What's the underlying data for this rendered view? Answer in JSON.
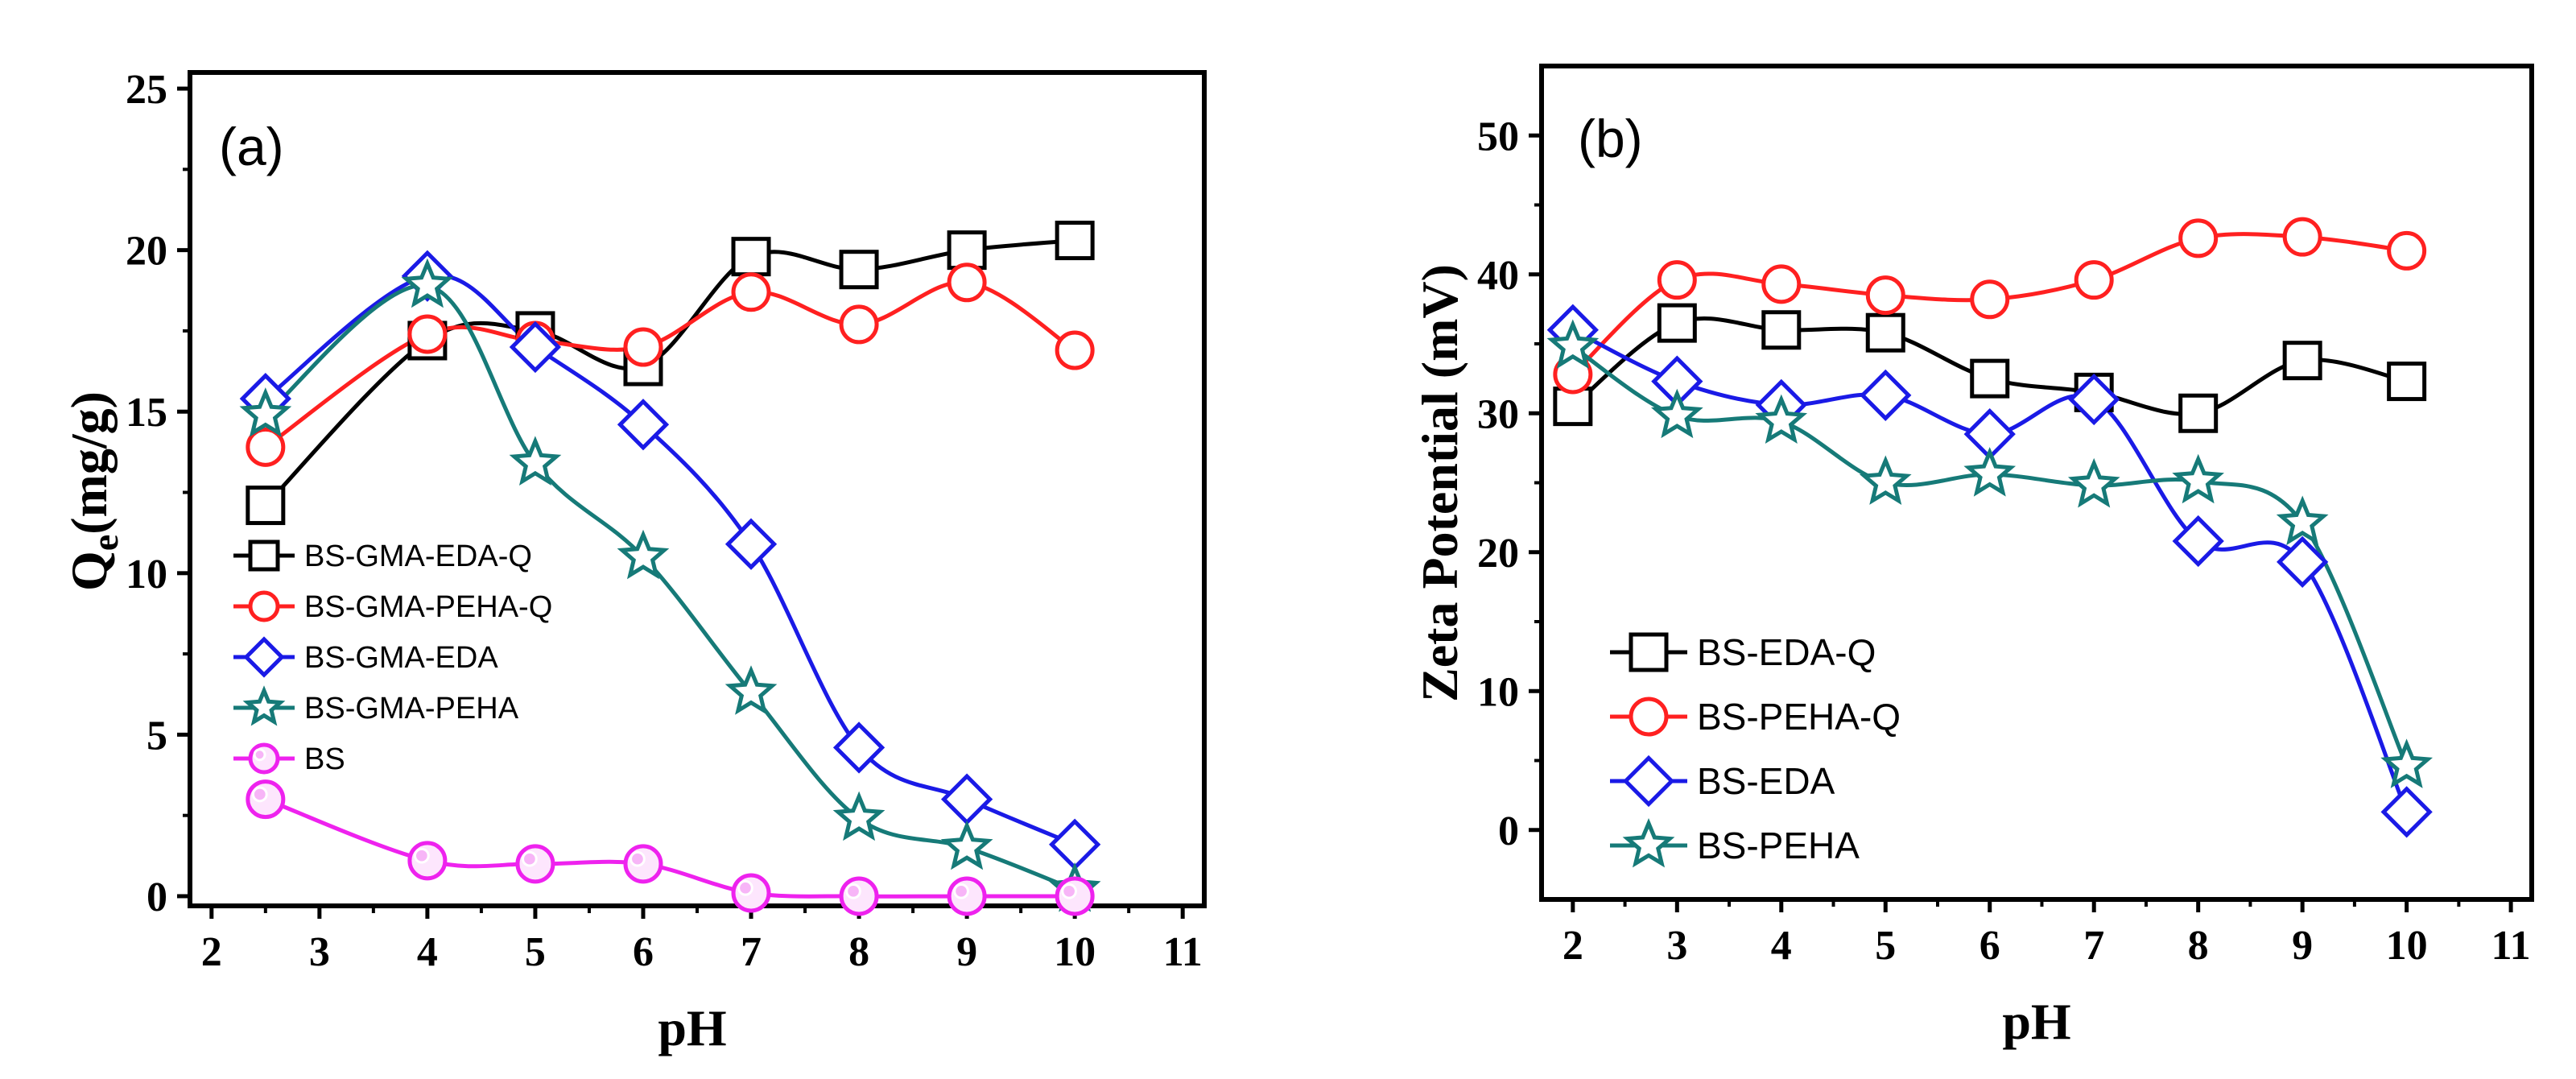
{
  "colors": {
    "BS-GMA-EDA-Q": "#000000",
    "BS-GMA-PEHA-Q": "#ff2020",
    "BS-GMA-EDA": "#1a1ae6",
    "BS-GMA-PEHA": "#167a78",
    "BS": "#ee22ee",
    "BS-EDA-Q": "#000000",
    "BS-PEHA-Q": "#ff2020",
    "BS-EDA": "#1a1ae6",
    "BS-PEHA": "#167a78"
  },
  "chart_data": [
    {
      "type": "line",
      "panel_label": "(a)",
      "xlabel": "pH",
      "ylabel_main": "Q",
      "ylabel_sub": "e",
      "ylabel_rest": "(mg/g)",
      "xlim": [
        1.8,
        11.2
      ],
      "ylim": [
        -0.3,
        25.5
      ],
      "xticks": [
        2,
        3,
        4,
        5,
        6,
        7,
        8,
        9,
        10,
        11
      ],
      "yticks": [
        0,
        5,
        10,
        15,
        20,
        25
      ],
      "legend_position": "center-left",
      "series": [
        {
          "name": "BS-GMA-EDA-Q",
          "marker": "square",
          "x": [
            2.5,
            4,
            5,
            6,
            7,
            8,
            9,
            10
          ],
          "y": [
            12.1,
            17.2,
            17.5,
            16.4,
            19.8,
            19.4,
            20.0,
            20.3
          ]
        },
        {
          "name": "BS-GMA-PEHA-Q",
          "marker": "circle",
          "x": [
            2.5,
            4,
            5,
            6,
            7,
            8,
            9,
            10
          ],
          "y": [
            13.9,
            17.4,
            17.2,
            17.0,
            18.7,
            17.7,
            19.0,
            16.9
          ]
        },
        {
          "name": "BS-GMA-EDA",
          "marker": "diamond",
          "x": [
            2.5,
            4,
            5,
            6,
            7,
            8,
            9,
            10
          ],
          "y": [
            15.4,
            19.2,
            17.0,
            14.6,
            10.9,
            4.6,
            3.0,
            1.6
          ]
        },
        {
          "name": "BS-GMA-PEHA",
          "marker": "star",
          "x": [
            2.5,
            4,
            5,
            6,
            7,
            8,
            9,
            10
          ],
          "y": [
            14.9,
            18.9,
            13.4,
            10.5,
            6.3,
            2.4,
            1.5,
            0.2
          ]
        },
        {
          "name": "BS",
          "marker": "sphere",
          "x": [
            2.5,
            4,
            5,
            6,
            7,
            8,
            9,
            10
          ],
          "y": [
            3.0,
            1.1,
            1.0,
            1.0,
            0.1,
            0.0,
            0.0,
            0.0
          ]
        }
      ]
    },
    {
      "type": "line",
      "panel_label": "(b)",
      "xlabel": "pH",
      "ylabel": "Zeta Potential (mV)",
      "xlim": [
        1.7,
        11.2
      ],
      "ylim": [
        -5,
        55
      ],
      "xticks": [
        2,
        3,
        4,
        5,
        6,
        7,
        8,
        9,
        10,
        11
      ],
      "yticks": [
        0,
        10,
        20,
        30,
        40,
        50
      ],
      "legend_position": "bottom-left",
      "series": [
        {
          "name": "BS-EDA-Q",
          "marker": "square",
          "x": [
            2,
            3,
            4,
            5,
            6,
            7,
            8,
            9,
            10
          ],
          "y": [
            30.5,
            36.5,
            36.0,
            35.8,
            32.5,
            31.5,
            30.0,
            33.8,
            32.3
          ]
        },
        {
          "name": "BS-PEHA-Q",
          "marker": "circle",
          "x": [
            2,
            3,
            4,
            5,
            6,
            7,
            8,
            9,
            10
          ],
          "y": [
            32.8,
            39.6,
            39.3,
            38.5,
            38.2,
            39.6,
            42.6,
            42.7,
            41.7
          ]
        },
        {
          "name": "BS-EDA",
          "marker": "diamond",
          "x": [
            2,
            3,
            4,
            5,
            6,
            7,
            8,
            9,
            10
          ],
          "y": [
            36.0,
            32.3,
            30.6,
            31.3,
            28.5,
            31.0,
            20.8,
            19.3,
            1.3
          ]
        },
        {
          "name": "BS-PEHA",
          "marker": "star",
          "x": [
            2,
            3,
            4,
            5,
            6,
            7,
            8,
            9,
            10
          ],
          "y": [
            34.8,
            29.8,
            29.4,
            25.0,
            25.6,
            24.8,
            25.1,
            22.1,
            4.6
          ]
        }
      ]
    }
  ]
}
